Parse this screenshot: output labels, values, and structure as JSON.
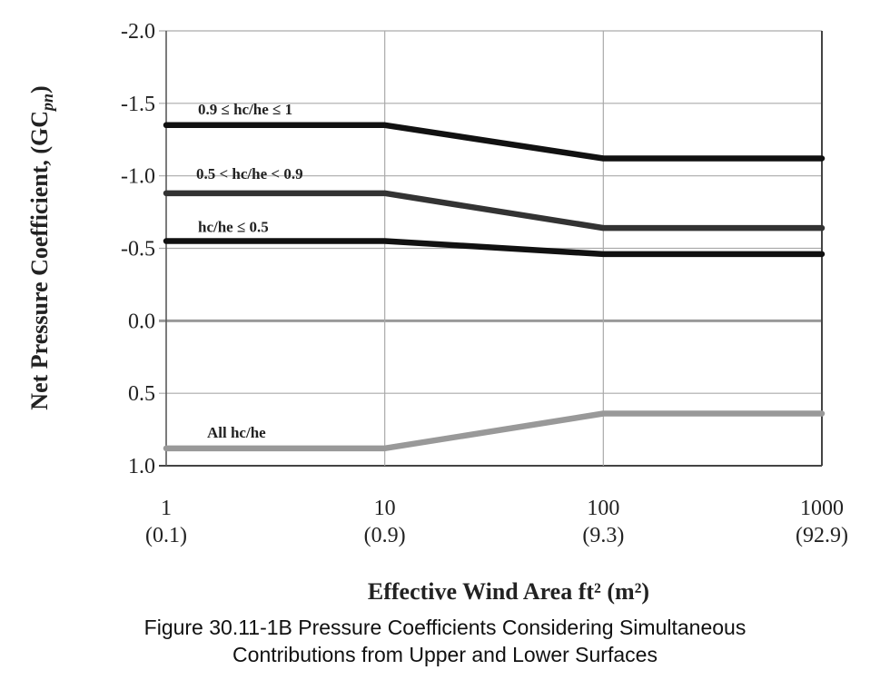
{
  "chart_data": {
    "type": "line",
    "title": "",
    "xlabel": "Effective Wind Area ft² (m²)",
    "ylabel": "Net Pressure Coefficient, (GC",
    "ylabel_subscript": "pn",
    "ylabel_close": ")",
    "x_scale": "log",
    "xlim": [
      1,
      1000
    ],
    "ylim": [
      -2.0,
      1.0
    ],
    "y_inverted": true,
    "grid": true,
    "x_ticks": [
      {
        "value": 1,
        "label": "1",
        "sublabel": "(0.1)"
      },
      {
        "value": 10,
        "label": "10",
        "sublabel": "(0.9)"
      },
      {
        "value": 100,
        "label": "100",
        "sublabel": "(9.3)"
      },
      {
        "value": 1000,
        "label": "1000",
        "sublabel": "(92.9)"
      }
    ],
    "y_ticks": [
      {
        "value": -2.0,
        "label": "-2.0"
      },
      {
        "value": -1.5,
        "label": "-1.5"
      },
      {
        "value": -1.0,
        "label": "-1.0"
      },
      {
        "value": -0.5,
        "label": "-0.5"
      },
      {
        "value": 0.0,
        "label": "0.0"
      },
      {
        "value": 0.5,
        "label": "0.5"
      },
      {
        "value": 1.0,
        "label": "1.0"
      }
    ],
    "series": [
      {
        "name": "0.9 ≤  hc/he ≤ 1",
        "color": "#111111",
        "x": [
          1,
          10,
          100,
          1000
        ],
        "y": [
          -1.35,
          -1.35,
          -1.12,
          -1.12
        ]
      },
      {
        "name": "0.5  <  hc/he  < 0.9",
        "color": "#333333",
        "x": [
          1,
          10,
          100,
          1000
        ],
        "y": [
          -0.88,
          -0.88,
          -0.64,
          -0.64
        ]
      },
      {
        "name": "hc/he ≤ 0.5",
        "color": "#111111",
        "x": [
          1,
          10,
          100,
          1000
        ],
        "y": [
          -0.55,
          -0.55,
          -0.46,
          -0.46
        ]
      },
      {
        "name": "All hc/he",
        "color": "#999999",
        "x": [
          1,
          10,
          100,
          1000
        ],
        "y": [
          0.88,
          0.88,
          0.64,
          0.64
        ]
      }
    ]
  },
  "caption": {
    "line1": "Figure 30.11-1B Pressure Coefficients Considering Simultaneous",
    "line2": "Contributions from Upper and Lower Surfaces"
  }
}
